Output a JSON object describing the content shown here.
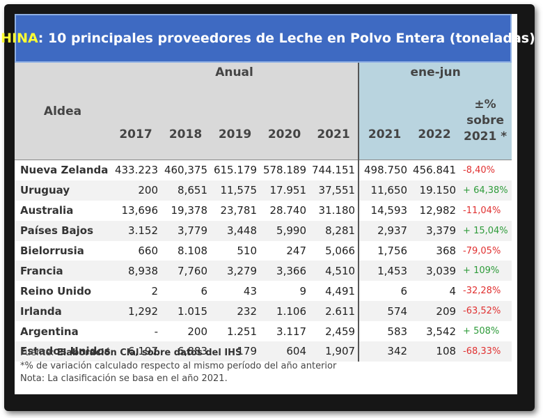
{
  "title": {
    "country": "CHINA",
    "rest": ": 10 principales proveedores de Leche en Polvo Entera (toneladas)"
  },
  "table": {
    "aldea_label": "Aldea",
    "anual_label": "Anual",
    "semester_label": "ene-jun",
    "years": [
      "2017",
      "2018",
      "2019",
      "2020",
      "2021"
    ],
    "semester_years": [
      "2021",
      "2022"
    ],
    "pct_header": [
      "±%",
      "sobre",
      "2021 *"
    ],
    "rows": [
      {
        "country": "Nueva Zelanda",
        "values": [
          "433.223",
          "460,375",
          "615.179",
          "578.189",
          "744.151",
          "498.750",
          "456.841"
        ],
        "pct": "-8,40%",
        "trend": "neg"
      },
      {
        "country": "Uruguay",
        "values": [
          "200",
          "8,651",
          "11,575",
          "17.951",
          "37,551",
          "11,650",
          "19.150"
        ],
        "pct": "+ 64,38%",
        "trend": "pos"
      },
      {
        "country": "Australia",
        "values": [
          "13,696",
          "19,378",
          "23,781",
          "28.740",
          "31.180",
          "14,593",
          "12,982"
        ],
        "pct": "-11,04%",
        "trend": "neg"
      },
      {
        "country": "Países Bajos",
        "values": [
          "3.152",
          "3,779",
          "3,448",
          "5,990",
          "8,281",
          "2,937",
          "3,379"
        ],
        "pct": "+ 15,04%",
        "trend": "pos"
      },
      {
        "country": "Bielorrusia",
        "values": [
          "660",
          "8.108",
          "510",
          "247",
          "5,066",
          "1,756",
          "368"
        ],
        "pct": "-79,05%",
        "trend": "neg"
      },
      {
        "country": "Francia",
        "values": [
          "8,938",
          "7,760",
          "3,279",
          "3,366",
          "4,510",
          "1,453",
          "3,039"
        ],
        "pct": "+ 109%",
        "trend": "pos"
      },
      {
        "country": "Reino Unido",
        "values": [
          "2",
          "6",
          "43",
          "9",
          "4,491",
          "6",
          "4"
        ],
        "pct": "-32,28%",
        "trend": "neg"
      },
      {
        "country": "Irlanda",
        "values": [
          "1,292",
          "1.015",
          "232",
          "1.106",
          "2.611",
          "574",
          "209"
        ],
        "pct": "-63,52%",
        "trend": "neg"
      },
      {
        "country": "Argentina",
        "values": [
          "-",
          "200",
          "1.251",
          "3.117",
          "2,459",
          "583",
          "3,542"
        ],
        "pct": "+ 508%",
        "trend": "pos"
      },
      {
        "country": "Estados Unidos",
        "values": [
          "6,197",
          "6,883",
          "179",
          "604",
          "1,907",
          "342",
          "108"
        ],
        "pct": "-68,33%",
        "trend": "neg"
      }
    ]
  },
  "notes": {
    "source_prefix": "Fuente: ",
    "source_bold": "Elaboración Clal sobre datos del IHS",
    "note1": "*% de variación calculado respecto al mismo período del año anterior",
    "note2": "Nota: La clasificación se basa en el año 2021."
  },
  "colors": {
    "title_bg": "#3e6ac2",
    "title_country": "#ffff33",
    "header_gray": "#d9d9d9",
    "header_blue": "#b9d4df",
    "negative": "#e03030",
    "positive": "#2e9b3a"
  }
}
